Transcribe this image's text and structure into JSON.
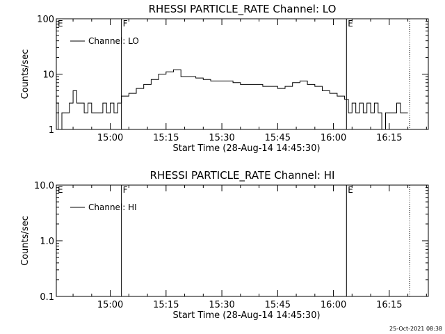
{
  "footer": {
    "timestamp": "25-Oct-2021 08:38"
  },
  "chart_data": [
    {
      "type": "line",
      "title": "RHESSI PARTICLE_RATE Channel: LO",
      "xlabel": "Start Time (28-Aug-14 14:45:30)",
      "ylabel": "Counts/sec",
      "yscale": "log",
      "ylim": [
        1,
        100
      ],
      "xlim": [
        "14:45:30",
        "16:25:30"
      ],
      "x_tick_labels": [
        "15:00",
        "15:15",
        "15:30",
        "15:45",
        "16:00",
        "16:15"
      ],
      "y_tick_labels": [
        "1",
        "10",
        "100"
      ],
      "legend": {
        "placement": "top-left",
        "label": "Channel: LO"
      },
      "markers": [
        {
          "label": "E",
          "time": "14:45:30",
          "style": "dotted"
        },
        {
          "label": "F",
          "time": "15:03:00",
          "style": "solid"
        },
        {
          "label": "E",
          "time": "16:03:30",
          "style": "solid"
        },
        {
          "label": "",
          "time": "16:20:30",
          "style": "dotted"
        }
      ],
      "series": [
        {
          "name": "Channel: LO",
          "points": [
            [
              "14:45:30",
              3.0
            ],
            [
              "14:46:00",
              1.0
            ],
            [
              "14:47:00",
              2.0
            ],
            [
              "14:48:00",
              2.0
            ],
            [
              "14:49:00",
              3.0
            ],
            [
              "14:50:00",
              5.0
            ],
            [
              "14:51:00",
              3.0
            ],
            [
              "14:52:00",
              3.0
            ],
            [
              "14:53:00",
              2.0
            ],
            [
              "14:54:00",
              3.0
            ],
            [
              "14:55:00",
              2.0
            ],
            [
              "14:56:00",
              2.0
            ],
            [
              "14:57:00",
              2.0
            ],
            [
              "14:58:00",
              3.0
            ],
            [
              "14:59:00",
              2.0
            ],
            [
              "15:00:00",
              3.0
            ],
            [
              "15:01:00",
              2.0
            ],
            [
              "15:02:00",
              3.0
            ],
            [
              "15:03:00",
              4.0
            ],
            [
              "15:05:00",
              4.5
            ],
            [
              "15:07:00",
              5.5
            ],
            [
              "15:09:00",
              6.5
            ],
            [
              "15:11:00",
              8.0
            ],
            [
              "15:13:00",
              10.0
            ],
            [
              "15:15:00",
              11.0
            ],
            [
              "15:17:00",
              12.0
            ],
            [
              "15:19:00",
              9.0
            ],
            [
              "15:21:00",
              9.0
            ],
            [
              "15:23:00",
              8.5
            ],
            [
              "15:25:00",
              8.0
            ],
            [
              "15:27:00",
              7.5
            ],
            [
              "15:29:00",
              7.5
            ],
            [
              "15:31:00",
              7.5
            ],
            [
              "15:33:00",
              7.0
            ],
            [
              "15:35:00",
              6.5
            ],
            [
              "15:37:00",
              6.5
            ],
            [
              "15:39:00",
              6.5
            ],
            [
              "15:41:00",
              6.0
            ],
            [
              "15:43:00",
              6.0
            ],
            [
              "15:45:00",
              5.5
            ],
            [
              "15:47:00",
              6.0
            ],
            [
              "15:49:00",
              7.0
            ],
            [
              "15:51:00",
              7.5
            ],
            [
              "15:53:00",
              6.5
            ],
            [
              "15:55:00",
              6.0
            ],
            [
              "15:57:00",
              5.0
            ],
            [
              "15:59:00",
              4.5
            ],
            [
              "16:01:00",
              4.0
            ],
            [
              "16:03:00",
              3.5
            ],
            [
              "16:04:00",
              2.0
            ],
            [
              "16:05:00",
              3.0
            ],
            [
              "16:06:00",
              2.0
            ],
            [
              "16:07:00",
              3.0
            ],
            [
              "16:08:00",
              2.0
            ],
            [
              "16:09:00",
              3.0
            ],
            [
              "16:10:00",
              2.0
            ],
            [
              "16:11:00",
              3.0
            ],
            [
              "16:12:00",
              2.0
            ],
            [
              "16:13:00",
              1.0
            ],
            [
              "16:14:00",
              2.0
            ],
            [
              "16:15:00",
              2.0
            ],
            [
              "16:16:00",
              2.0
            ],
            [
              "16:17:00",
              3.0
            ],
            [
              "16:18:00",
              2.0
            ],
            [
              "16:20:00",
              2.0
            ]
          ]
        }
      ]
    },
    {
      "type": "line",
      "title": "RHESSI PARTICLE_RATE Channel: HI",
      "xlabel": "Start Time (28-Aug-14 14:45:30)",
      "ylabel": "Counts/sec",
      "yscale": "log",
      "ylim": [
        0.1,
        10.0
      ],
      "xlim": [
        "14:45:30",
        "16:25:30"
      ],
      "x_tick_labels": [
        "15:00",
        "15:15",
        "15:30",
        "15:45",
        "16:00",
        "16:15"
      ],
      "y_tick_labels": [
        "0.1",
        "1.0",
        "10.0"
      ],
      "legend": {
        "placement": "top-left",
        "label": "Channel: HI"
      },
      "markers": [
        {
          "label": "E",
          "time": "14:45:30",
          "style": "dotted"
        },
        {
          "label": "F",
          "time": "15:03:00",
          "style": "solid"
        },
        {
          "label": "E",
          "time": "16:03:30",
          "style": "solid"
        },
        {
          "label": "",
          "time": "16:20:30",
          "style": "dotted"
        }
      ],
      "series": [
        {
          "name": "Channel: HI",
          "points": []
        }
      ]
    }
  ]
}
